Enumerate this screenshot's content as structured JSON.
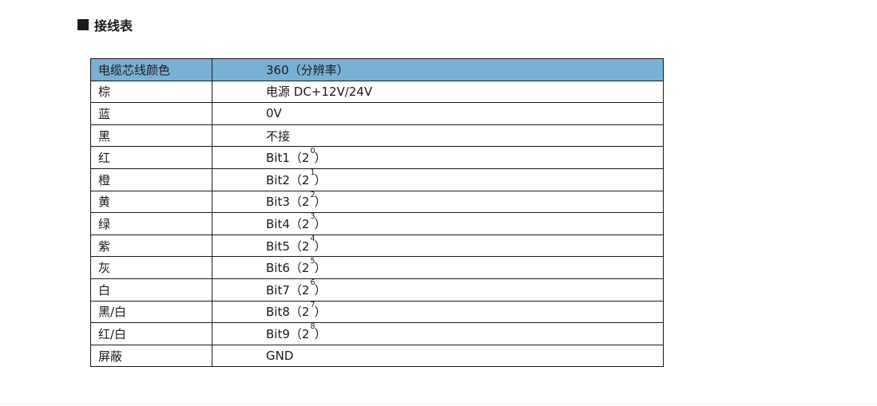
{
  "section": {
    "title": "接线表",
    "marker_icon": "black-square"
  },
  "wiring_table": {
    "header": {
      "col1": "电缆芯线颜色",
      "col2": "360（分辨率）"
    },
    "rows": [
      {
        "color": "棕",
        "func_pre": "电源 DC+12V/24V",
        "sup": "",
        "func_post": ""
      },
      {
        "color": "蓝",
        "func_pre": "0V",
        "sup": "",
        "func_post": ""
      },
      {
        "color": "黑",
        "func_pre": "不接",
        "sup": "",
        "func_post": ""
      },
      {
        "color": "红",
        "func_pre": "Bit1（2",
        "sup": "0",
        "func_post": "）"
      },
      {
        "color": "橙",
        "func_pre": "Bit2（2",
        "sup": "1",
        "func_post": "）"
      },
      {
        "color": "黄",
        "func_pre": "Bit3（2",
        "sup": "2",
        "func_post": "）"
      },
      {
        "color": "绿",
        "func_pre": "Bit4（2",
        "sup": "3",
        "func_post": "）"
      },
      {
        "color": "紫",
        "func_pre": "Bit5（2",
        "sup": "4",
        "func_post": "）"
      },
      {
        "color": "灰",
        "func_pre": "Bit6（2",
        "sup": "5",
        "func_post": "）"
      },
      {
        "color": "白",
        "func_pre": "Bit7（2",
        "sup": "6",
        "func_post": "）"
      },
      {
        "color": "黑/白",
        "func_pre": "Bit8（2",
        "sup": "7",
        "func_post": "）"
      },
      {
        "color": "红/白",
        "func_pre": "Bit9（2",
        "sup": "8",
        "func_post": "）"
      },
      {
        "color": "屏蔽",
        "func_pre": "GND",
        "sup": "",
        "func_post": ""
      }
    ]
  },
  "colors": {
    "header_bg": "#7ab0d2",
    "table_border": "#1b1b1b",
    "text": "#1a1a1a",
    "page_bg": "#ffffff"
  }
}
